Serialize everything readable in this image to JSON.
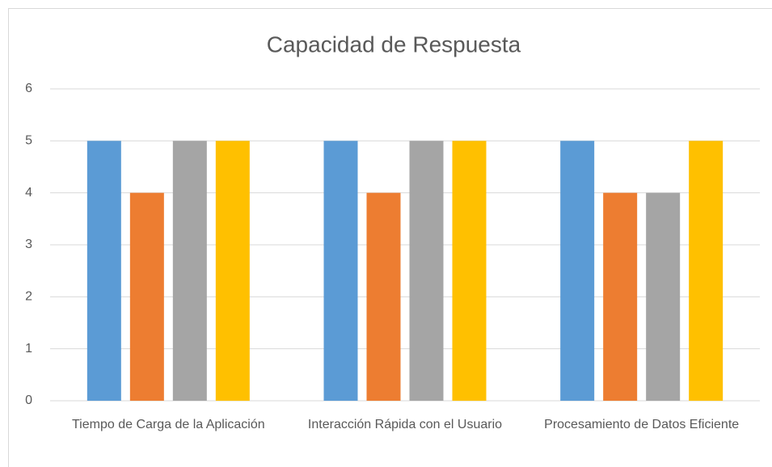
{
  "chart_data": {
    "type": "bar",
    "title": "Capacidad de Respuesta",
    "categories": [
      "Tiempo de Carga de la Aplicación",
      "Interacción Rápida con el Usuario",
      "Procesamiento de Datos Eficiente"
    ],
    "series": [
      {
        "color": "#5b9bd5",
        "values": [
          5,
          5,
          5
        ]
      },
      {
        "color": "#ed7d31",
        "values": [
          4,
          4,
          4
        ]
      },
      {
        "color": "#a5a5a5",
        "values": [
          5,
          5,
          4
        ]
      },
      {
        "color": "#ffc000",
        "values": [
          5,
          5,
          5
        ]
      }
    ],
    "ylim": [
      0,
      6
    ],
    "yticks": [
      0,
      1,
      2,
      3,
      4,
      5,
      6
    ],
    "grid": true
  }
}
